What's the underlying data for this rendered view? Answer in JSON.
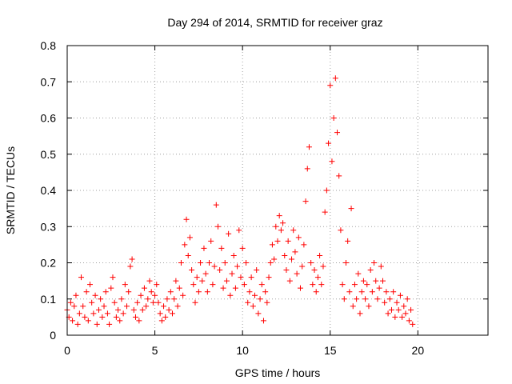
{
  "colors": {
    "series": "#ff0000",
    "axis": "#000000",
    "grid": "#a0a0a0",
    "background": "#ffffff"
  },
  "chart_data": {
    "type": "scatter",
    "title": "Day 294 of 2014, SRMTID for receiver graz",
    "xlabel": "GPS time / hours",
    "ylabel": "SRMTID / TECUs",
    "xlim": [
      0,
      24
    ],
    "ylim": [
      0,
      0.8
    ],
    "x_ticks": [
      0,
      5,
      10,
      15,
      20
    ],
    "x_tick_labels": [
      "0",
      "5",
      "10",
      "15",
      "20"
    ],
    "y_ticks": [
      0,
      0.1,
      0.2,
      0.3,
      0.4,
      0.5,
      0.6,
      0.7,
      0.8
    ],
    "y_tick_labels": [
      "0",
      "0.1",
      "0.2",
      "0.3",
      "0.4",
      "0.5",
      "0.6",
      "0.7",
      "0.8"
    ],
    "grid": true,
    "marker": "+",
    "series": [
      {
        "name": "SRMTID",
        "points": [
          [
            0.0,
            0.07
          ],
          [
            0.1,
            0.05
          ],
          [
            0.2,
            0.09
          ],
          [
            0.3,
            0.04
          ],
          [
            0.4,
            0.08
          ],
          [
            0.5,
            0.11
          ],
          [
            0.6,
            0.03
          ],
          [
            0.7,
            0.06
          ],
          [
            0.8,
            0.16
          ],
          [
            0.9,
            0.08
          ],
          [
            1.0,
            0.05
          ],
          [
            1.1,
            0.12
          ],
          [
            1.2,
            0.04
          ],
          [
            1.3,
            0.14
          ],
          [
            1.4,
            0.09
          ],
          [
            1.5,
            0.06
          ],
          [
            1.6,
            0.11
          ],
          [
            1.7,
            0.03
          ],
          [
            1.8,
            0.07
          ],
          [
            1.9,
            0.1
          ],
          [
            2.0,
            0.05
          ],
          [
            2.1,
            0.08
          ],
          [
            2.2,
            0.12
          ],
          [
            2.3,
            0.06
          ],
          [
            2.4,
            0.03
          ],
          [
            2.5,
            0.13
          ],
          [
            2.6,
            0.16
          ],
          [
            2.7,
            0.09
          ],
          [
            2.8,
            0.05
          ],
          [
            2.9,
            0.07
          ],
          [
            3.0,
            0.04
          ],
          [
            3.1,
            0.1
          ],
          [
            3.2,
            0.06
          ],
          [
            3.3,
            0.14
          ],
          [
            3.4,
            0.08
          ],
          [
            3.5,
            0.12
          ],
          [
            3.6,
            0.19
          ],
          [
            3.7,
            0.21
          ],
          [
            3.8,
            0.07
          ],
          [
            3.9,
            0.05
          ],
          [
            4.0,
            0.09
          ],
          [
            4.1,
            0.04
          ],
          [
            4.2,
            0.11
          ],
          [
            4.3,
            0.07
          ],
          [
            4.4,
            0.13
          ],
          [
            4.5,
            0.08
          ],
          [
            4.6,
            0.1
          ],
          [
            4.7,
            0.15
          ],
          [
            4.8,
            0.12
          ],
          [
            4.9,
            0.09
          ],
          [
            5.0,
            0.11
          ],
          [
            5.1,
            0.14
          ],
          [
            5.2,
            0.09
          ],
          [
            5.3,
            0.06
          ],
          [
            5.4,
            0.04
          ],
          [
            5.5,
            0.08
          ],
          [
            5.6,
            0.05
          ],
          [
            5.7,
            0.1
          ],
          [
            5.8,
            0.07
          ],
          [
            5.9,
            0.12
          ],
          [
            6.0,
            0.06
          ],
          [
            6.1,
            0.1
          ],
          [
            6.2,
            0.15
          ],
          [
            6.3,
            0.08
          ],
          [
            6.4,
            0.13
          ],
          [
            6.5,
            0.2
          ],
          [
            6.6,
            0.11
          ],
          [
            6.7,
            0.25
          ],
          [
            6.8,
            0.32
          ],
          [
            6.9,
            0.22
          ],
          [
            7.0,
            0.27
          ],
          [
            7.1,
            0.18
          ],
          [
            7.2,
            0.14
          ],
          [
            7.3,
            0.09
          ],
          [
            7.4,
            0.16
          ],
          [
            7.5,
            0.12
          ],
          [
            7.6,
            0.2
          ],
          [
            7.7,
            0.15
          ],
          [
            7.8,
            0.24
          ],
          [
            7.9,
            0.17
          ],
          [
            8.0,
            0.12
          ],
          [
            8.1,
            0.2
          ],
          [
            8.2,
            0.26
          ],
          [
            8.3,
            0.14
          ],
          [
            8.4,
            0.19
          ],
          [
            8.5,
            0.36
          ],
          [
            8.6,
            0.3
          ],
          [
            8.7,
            0.18
          ],
          [
            8.8,
            0.24
          ],
          [
            8.9,
            0.13
          ],
          [
            9.0,
            0.2
          ],
          [
            9.1,
            0.15
          ],
          [
            9.2,
            0.28
          ],
          [
            9.3,
            0.11
          ],
          [
            9.4,
            0.17
          ],
          [
            9.5,
            0.22
          ],
          [
            9.6,
            0.13
          ],
          [
            9.7,
            0.19
          ],
          [
            9.8,
            0.29
          ],
          [
            9.9,
            0.16
          ],
          [
            10.0,
            0.24
          ],
          [
            10.1,
            0.14
          ],
          [
            10.2,
            0.2
          ],
          [
            10.3,
            0.09
          ],
          [
            10.4,
            0.12
          ],
          [
            10.5,
            0.16
          ],
          [
            10.6,
            0.08
          ],
          [
            10.7,
            0.11
          ],
          [
            10.8,
            0.18
          ],
          [
            10.9,
            0.06
          ],
          [
            11.0,
            0.1
          ],
          [
            11.1,
            0.14
          ],
          [
            11.2,
            0.04
          ],
          [
            11.3,
            0.12
          ],
          [
            11.4,
            0.09
          ],
          [
            11.5,
            0.16
          ],
          [
            11.6,
            0.2
          ],
          [
            11.7,
            0.25
          ],
          [
            11.8,
            0.21
          ],
          [
            11.9,
            0.3
          ],
          [
            12.0,
            0.26
          ],
          [
            12.1,
            0.33
          ],
          [
            12.2,
            0.29
          ],
          [
            12.3,
            0.31
          ],
          [
            12.4,
            0.22
          ],
          [
            12.5,
            0.18
          ],
          [
            12.6,
            0.26
          ],
          [
            12.7,
            0.15
          ],
          [
            12.8,
            0.21
          ],
          [
            12.9,
            0.29
          ],
          [
            13.0,
            0.23
          ],
          [
            13.1,
            0.17
          ],
          [
            13.2,
            0.27
          ],
          [
            13.3,
            0.13
          ],
          [
            13.4,
            0.19
          ],
          [
            13.5,
            0.25
          ],
          [
            13.6,
            0.37
          ],
          [
            13.7,
            0.46
          ],
          [
            13.8,
            0.52
          ],
          [
            13.9,
            0.2
          ],
          [
            14.0,
            0.14
          ],
          [
            14.1,
            0.18
          ],
          [
            14.2,
            0.12
          ],
          [
            14.3,
            0.16
          ],
          [
            14.4,
            0.22
          ],
          [
            14.5,
            0.14
          ],
          [
            14.6,
            0.19
          ],
          [
            14.7,
            0.34
          ],
          [
            14.8,
            0.4
          ],
          [
            14.9,
            0.53
          ],
          [
            15.0,
            0.69
          ],
          [
            15.1,
            0.48
          ],
          [
            15.2,
            0.6
          ],
          [
            15.3,
            0.71
          ],
          [
            15.4,
            0.56
          ],
          [
            15.5,
            0.44
          ],
          [
            15.6,
            0.29
          ],
          [
            15.7,
            0.14
          ],
          [
            15.8,
            0.1
          ],
          [
            15.9,
            0.2
          ],
          [
            16.0,
            0.26
          ],
          [
            16.1,
            0.12
          ],
          [
            16.2,
            0.35
          ],
          [
            16.3,
            0.08
          ],
          [
            16.4,
            0.14
          ],
          [
            16.5,
            0.1
          ],
          [
            16.6,
            0.17
          ],
          [
            16.7,
            0.06
          ],
          [
            16.8,
            0.12
          ],
          [
            16.9,
            0.15
          ],
          [
            17.0,
            0.1
          ],
          [
            17.1,
            0.14
          ],
          [
            17.2,
            0.08
          ],
          [
            17.3,
            0.18
          ],
          [
            17.4,
            0.12
          ],
          [
            17.5,
            0.2
          ],
          [
            17.6,
            0.15
          ],
          [
            17.7,
            0.1
          ],
          [
            17.8,
            0.13
          ],
          [
            17.9,
            0.19
          ],
          [
            18.0,
            0.15
          ],
          [
            18.1,
            0.09
          ],
          [
            18.2,
            0.12
          ],
          [
            18.3,
            0.06
          ],
          [
            18.4,
            0.1
          ],
          [
            18.5,
            0.07
          ],
          [
            18.6,
            0.12
          ],
          [
            18.7,
            0.05
          ],
          [
            18.8,
            0.09
          ],
          [
            18.9,
            0.07
          ],
          [
            19.0,
            0.11
          ],
          [
            19.1,
            0.05
          ],
          [
            19.2,
            0.08
          ],
          [
            19.3,
            0.06
          ],
          [
            19.4,
            0.1
          ],
          [
            19.5,
            0.04
          ],
          [
            19.6,
            0.07
          ],
          [
            19.7,
            0.03
          ]
        ]
      }
    ]
  }
}
